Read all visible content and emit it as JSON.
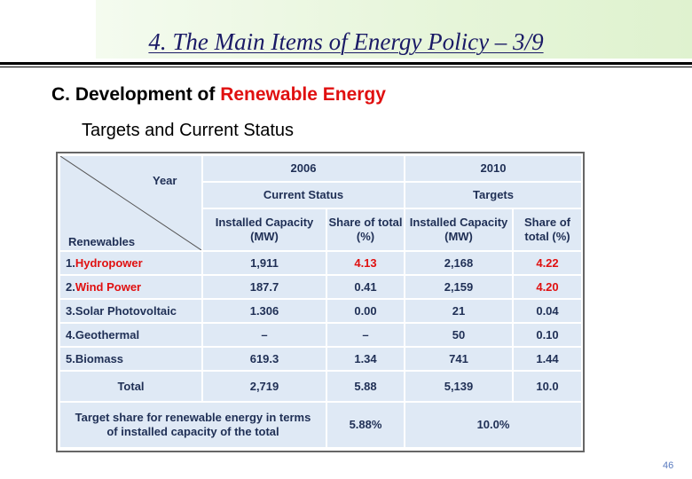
{
  "header": {
    "title": "4. The Main Items of Energy Policy – 3/9"
  },
  "section": {
    "prefix": "C. Development of ",
    "highlight": "Renewable Energy",
    "subheading": "Targets and Current Status"
  },
  "table": {
    "corner_top": "Year",
    "corner_bottom": "Renewables",
    "year_2006": "2006",
    "year_2010": "2010",
    "current_status": "Current Status",
    "targets": "Targets",
    "col_installed_2006": "Installed Capacity (MW)",
    "col_share_2006": "Share of total (%)",
    "col_installed_2010": "Installed Capacity (MW)",
    "col_share_2010": "Share of total (%)",
    "rows": [
      {
        "num": "1. ",
        "name": "Hydropower",
        "red_name": true,
        "cap_2006": "1,911",
        "share_2006": "4.13",
        "red_2006": true,
        "cap_2010": "2,168",
        "share_2010": "4.22",
        "red_2010": true
      },
      {
        "num": "2. ",
        "name": "Wind Power",
        "red_name": true,
        "cap_2006": "187.7",
        "share_2006": "0.41",
        "red_2006": false,
        "cap_2010": "2,159",
        "share_2010": "4.20",
        "red_2010": true
      },
      {
        "num": "3. ",
        "name": "Solar Photovoltaic",
        "red_name": false,
        "cap_2006": "1.306",
        "share_2006": "0.00",
        "red_2006": false,
        "cap_2010": "21",
        "share_2010": "0.04",
        "red_2010": false
      },
      {
        "num": "4. ",
        "name": "Geothermal",
        "red_name": false,
        "cap_2006": "–",
        "share_2006": "–",
        "red_2006": false,
        "cap_2010": "50",
        "share_2010": "0.10",
        "red_2010": false
      },
      {
        "num": "5. ",
        "name": "Biomass",
        "red_name": false,
        "cap_2006": "619.3",
        "share_2006": "1.34",
        "red_2006": false,
        "cap_2010": "741",
        "share_2010": "1.44",
        "red_2010": false
      }
    ],
    "total_label": "Total",
    "total_cap_2006": "2,719",
    "total_share_2006": "5.88",
    "total_cap_2010": "5,139",
    "total_share_2010": "10.0",
    "target_label": "Target share for renewable energy in terms of installed capacity of the total",
    "target_2006": "5.88%",
    "target_2010": "10.0%"
  },
  "footer": {
    "page_number": "46"
  },
  "colors": {
    "cell_bg": "#dfe9f5",
    "text_navy": "#1f2f55",
    "highlight_red": "#e01010",
    "title_blue": "#1a1a66"
  }
}
